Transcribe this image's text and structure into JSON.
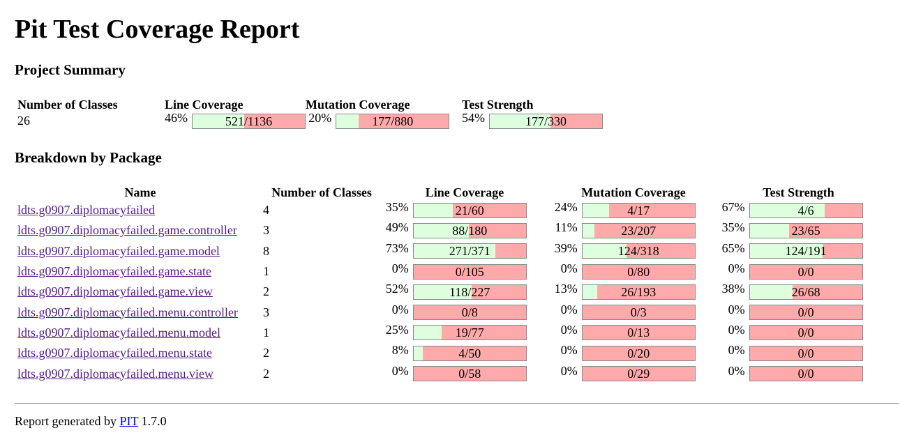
{
  "title": "Pit Test Coverage Report",
  "summary": {
    "heading": "Project Summary",
    "headers": {
      "classes": "Number of Classes",
      "line": "Line Coverage",
      "mutation": "Mutation Coverage",
      "strength": "Test Strength"
    },
    "classes": "26",
    "line": {
      "pct": "46%",
      "text": "521/1136",
      "fraction": 0.46
    },
    "mutation": {
      "pct": "20%",
      "text": "177/880",
      "fraction": 0.2
    },
    "strength": {
      "pct": "54%",
      "text": "177/330",
      "fraction": 0.54
    }
  },
  "breakdown": {
    "heading": "Breakdown by Package",
    "headers": {
      "name": "Name",
      "classes": "Number of Classes",
      "line": "Line Coverage",
      "mutation": "Mutation Coverage",
      "strength": "Test Strength"
    },
    "rows": [
      {
        "name": "ldts.g0907.diplomacyfailed",
        "classes": "4",
        "line": {
          "pct": "35%",
          "text": "21/60",
          "fraction": 0.35
        },
        "mutation": {
          "pct": "24%",
          "text": "4/17",
          "fraction": 0.24
        },
        "strength": {
          "pct": "67%",
          "text": "4/6",
          "fraction": 0.67
        }
      },
      {
        "name": "ldts.g0907.diplomacyfailed.game.controller",
        "classes": "3",
        "line": {
          "pct": "49%",
          "text": "88/180",
          "fraction": 0.49
        },
        "mutation": {
          "pct": "11%",
          "text": "23/207",
          "fraction": 0.11
        },
        "strength": {
          "pct": "35%",
          "text": "23/65",
          "fraction": 0.35
        }
      },
      {
        "name": "ldts.g0907.diplomacyfailed.game.model",
        "classes": "8",
        "line": {
          "pct": "73%",
          "text": "271/371",
          "fraction": 0.73
        },
        "mutation": {
          "pct": "39%",
          "text": "124/318",
          "fraction": 0.39
        },
        "strength": {
          "pct": "65%",
          "text": "124/191",
          "fraction": 0.65
        }
      },
      {
        "name": "ldts.g0907.diplomacyfailed.game.state",
        "classes": "1",
        "line": {
          "pct": "0%",
          "text": "0/105",
          "fraction": 0
        },
        "mutation": {
          "pct": "0%",
          "text": "0/80",
          "fraction": 0
        },
        "strength": {
          "pct": "0%",
          "text": "0/0",
          "fraction": 0
        }
      },
      {
        "name": "ldts.g0907.diplomacyfailed.game.view",
        "classes": "2",
        "line": {
          "pct": "52%",
          "text": "118/227",
          "fraction": 0.52
        },
        "mutation": {
          "pct": "13%",
          "text": "26/193",
          "fraction": 0.13
        },
        "strength": {
          "pct": "38%",
          "text": "26/68",
          "fraction": 0.38
        }
      },
      {
        "name": "ldts.g0907.diplomacyfailed.menu.controller",
        "classes": "3",
        "line": {
          "pct": "0%",
          "text": "0/8",
          "fraction": 0
        },
        "mutation": {
          "pct": "0%",
          "text": "0/3",
          "fraction": 0
        },
        "strength": {
          "pct": "0%",
          "text": "0/0",
          "fraction": 0
        }
      },
      {
        "name": "ldts.g0907.diplomacyfailed.menu.model",
        "classes": "1",
        "line": {
          "pct": "25%",
          "text": "19/77",
          "fraction": 0.25
        },
        "mutation": {
          "pct": "0%",
          "text": "0/13",
          "fraction": 0
        },
        "strength": {
          "pct": "0%",
          "text": "0/0",
          "fraction": 0
        }
      },
      {
        "name": "ldts.g0907.diplomacyfailed.menu.state",
        "classes": "2",
        "line": {
          "pct": "8%",
          "text": "4/50",
          "fraction": 0.08
        },
        "mutation": {
          "pct": "0%",
          "text": "0/20",
          "fraction": 0
        },
        "strength": {
          "pct": "0%",
          "text": "0/0",
          "fraction": 0
        }
      },
      {
        "name": "ldts.g0907.diplomacyfailed.menu.view",
        "classes": "2",
        "line": {
          "pct": "0%",
          "text": "0/58",
          "fraction": 0
        },
        "mutation": {
          "pct": "0%",
          "text": "0/29",
          "fraction": 0
        },
        "strength": {
          "pct": "0%",
          "text": "0/0",
          "fraction": 0
        }
      }
    ]
  },
  "footer": {
    "prefix": "Report generated by",
    "link": "PIT",
    "version": "1.7.0"
  },
  "colors": {
    "covered": "#ddffdd",
    "uncovered": "#ffaaaa",
    "bar_border": "#888888",
    "visited_link": "#551a8b",
    "link": "#0000ee"
  }
}
